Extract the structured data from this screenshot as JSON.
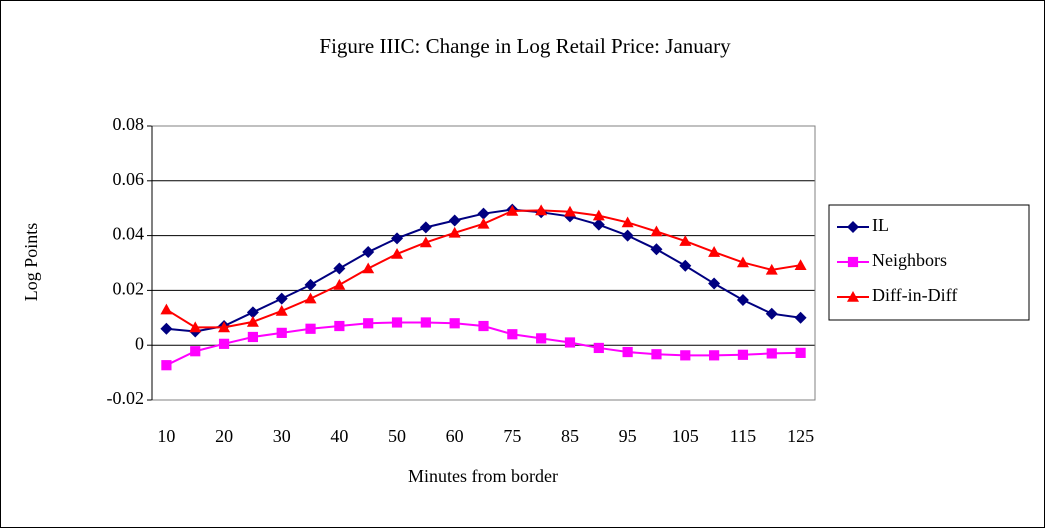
{
  "chart_data": {
    "type": "line",
    "title": "Figure IIIC:  Change in Log Retail Price:  January",
    "x_label": "Minutes from border",
    "y_label": "Log Points",
    "categories": [
      "10",
      null,
      "20",
      null,
      "30",
      null,
      "40",
      null,
      "50",
      null,
      "60",
      null,
      "75",
      null,
      "85",
      null,
      "95",
      null,
      "105",
      null,
      "115",
      null,
      "125"
    ],
    "series": [
      {
        "name": "IL",
        "color": "#000080",
        "marker": "diamond",
        "values": [
          0.006,
          0.005,
          0.007,
          0.012,
          0.017,
          0.022,
          0.028,
          0.034,
          0.039,
          0.043,
          0.0455,
          0.048,
          0.0495,
          0.0485,
          0.047,
          0.044,
          0.04,
          0.035,
          0.029,
          0.0225,
          0.0165,
          0.0115,
          0.01
        ]
      },
      {
        "name": "Neighbors",
        "color": "#ff00ff",
        "marker": "square",
        "values": [
          -0.0073,
          -0.0022,
          0.0005,
          0.003,
          0.0045,
          0.006,
          0.007,
          0.008,
          0.0083,
          0.0083,
          0.008,
          0.007,
          0.004,
          0.0025,
          0.001,
          -0.001,
          -0.0025,
          -0.0033,
          -0.0037,
          -0.0037,
          -0.0035,
          -0.003,
          -0.0028
        ]
      },
      {
        "name": "Diff-in-Diff",
        "color": "#ff0000",
        "marker": "triangle",
        "values": [
          0.013,
          0.0065,
          0.0065,
          0.0085,
          0.0125,
          0.017,
          0.022,
          0.028,
          0.0333,
          0.0375,
          0.041,
          0.0443,
          0.049,
          0.0492,
          0.0487,
          0.0473,
          0.0448,
          0.0415,
          0.038,
          0.034,
          0.0302,
          0.0275,
          0.0292
        ]
      }
    ],
    "ylim": [
      -0.02,
      0.08
    ],
    "yticks": [
      {
        "value": -0.02,
        "label": "-0.02"
      },
      0,
      {
        "value": 0.02,
        "label": "0.02"
      },
      {
        "value": 0.04,
        "label": "0.04"
      },
      {
        "value": 0.06,
        "label": "0.06"
      },
      {
        "value": 0.08,
        "label": "0.08"
      }
    ],
    "grid": true,
    "legend": "right"
  }
}
